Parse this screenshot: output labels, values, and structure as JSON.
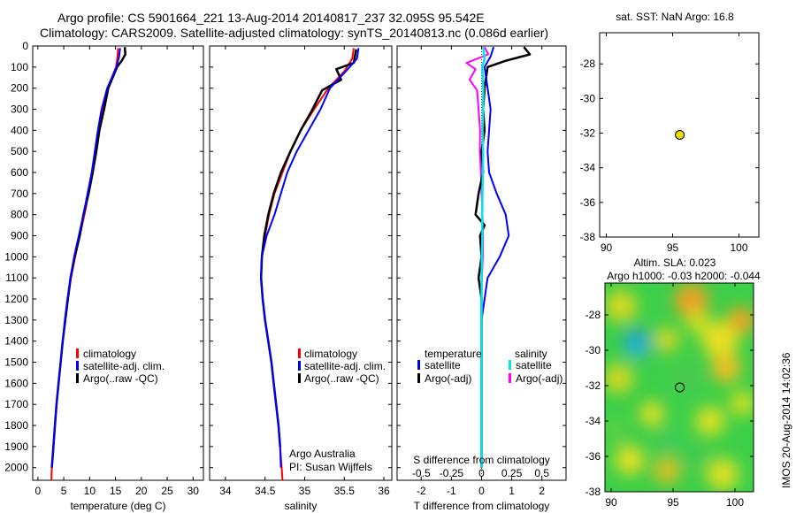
{
  "header": {
    "line1": "Argo profile: CS 5901664_221 13-Aug-2014 20140817_237 32.095S 95.542E",
    "line2": "Climatology: CARS2009. Satellite-adjusted climatology: synTS_20140813.nc (0.086d earlier)"
  },
  "colors": {
    "climatology": "#ff0000",
    "satellite": "#0000ff",
    "argo": "#000000",
    "sal_satellite": "#00e5ee",
    "sal_argo": "#ff00ff",
    "float_marker": "#e8e000"
  },
  "chart_data": [
    {
      "type": "line",
      "id": "temperature",
      "xlabel": "temperature (deg C)",
      "ylabel": "",
      "xlim": [
        -1,
        32
      ],
      "ylim": [
        2060,
        0
      ],
      "y_reversed": true,
      "xticks": [
        0,
        5,
        10,
        15,
        20,
        25,
        30
      ],
      "yticks": [
        0,
        100,
        200,
        300,
        400,
        500,
        600,
        700,
        800,
        900,
        1000,
        1100,
        1200,
        1300,
        1400,
        1500,
        1600,
        1700,
        1800,
        1900,
        2000
      ],
      "legend": [
        "climatology",
        "satellite-adj. clim.",
        "Argo(..raw -QC)"
      ],
      "series": [
        {
          "name": "climatology",
          "color": "#ff0000",
          "width": 2,
          "points": [
            [
              15.5,
              10
            ],
            [
              15.4,
              50
            ],
            [
              15.1,
              100
            ],
            [
              13.5,
              200
            ],
            [
              12.5,
              300
            ],
            [
              11.8,
              400
            ],
            [
              11.2,
              500
            ],
            [
              10.6,
              600
            ],
            [
              9.8,
              700
            ],
            [
              9.0,
              800
            ],
            [
              8.1,
              900
            ],
            [
              7.2,
              1000
            ],
            [
              6.4,
              1100
            ],
            [
              5.8,
              1200
            ],
            [
              5.3,
              1300
            ],
            [
              4.8,
              1400
            ],
            [
              4.4,
              1500
            ],
            [
              4.0,
              1600
            ],
            [
              3.6,
              1700
            ],
            [
              3.3,
              1800
            ],
            [
              3.0,
              1900
            ],
            [
              2.7,
              2000
            ],
            [
              2.6,
              2060
            ]
          ]
        },
        {
          "name": "Argo(..raw -QC)",
          "color": "#000000",
          "width": 2.5,
          "points": [
            [
              16.8,
              5
            ],
            [
              16.9,
              40
            ],
            [
              16.2,
              70
            ],
            [
              15.3,
              100
            ],
            [
              13.6,
              200
            ],
            [
              12.8,
              300
            ],
            [
              11.9,
              400
            ],
            [
              11.3,
              500
            ],
            [
              10.6,
              600
            ],
            [
              9.8,
              700
            ],
            [
              8.8,
              800
            ],
            [
              8.1,
              900
            ],
            [
              7.1,
              1000
            ],
            [
              6.3,
              1100
            ],
            [
              5.8,
              1200
            ],
            [
              5.3,
              1300
            ],
            [
              4.8,
              1400
            ],
            [
              4.4,
              1500
            ],
            [
              4.0,
              1600
            ],
            [
              3.6,
              1700
            ],
            [
              3.3,
              1800
            ],
            [
              3.0,
              1900
            ],
            [
              2.7,
              2000
            ]
          ]
        },
        {
          "name": "satellite-adj. clim.",
          "color": "#0000ff",
          "width": 2,
          "points": [
            [
              15.9,
              10
            ],
            [
              15.7,
              50
            ],
            [
              15.2,
              100
            ],
            [
              13.4,
              200
            ],
            [
              12.3,
              300
            ],
            [
              11.6,
              400
            ],
            [
              11.0,
              500
            ],
            [
              10.4,
              600
            ],
            [
              9.6,
              700
            ],
            [
              8.8,
              800
            ],
            [
              7.9,
              900
            ],
            [
              7.0,
              1000
            ],
            [
              6.3,
              1100
            ],
            [
              5.7,
              1200
            ],
            [
              5.2,
              1300
            ],
            [
              4.8,
              1400
            ],
            [
              4.4,
              1500
            ],
            [
              4.0,
              1600
            ],
            [
              3.6,
              1700
            ],
            [
              3.3,
              1800
            ],
            [
              3.0,
              1900
            ],
            [
              2.7,
              2000
            ]
          ]
        }
      ]
    },
    {
      "type": "line",
      "id": "salinity",
      "xlabel": "salinity",
      "ylabel": "",
      "xlim": [
        33.8,
        36.1
      ],
      "ylim": [
        2060,
        0
      ],
      "y_reversed": true,
      "xticks": [
        34,
        34.5,
        35,
        35.5,
        36
      ],
      "xticklabels": [
        "34",
        "34.5",
        "35",
        "35.5",
        "36"
      ],
      "legend": [
        "climatology",
        "satellite-adj. clim.",
        "Argo(..raw -QC)"
      ],
      "annotation": [
        "Argo Australia",
        "PI: Susan Wijffels"
      ],
      "series": [
        {
          "name": "climatology",
          "color": "#ff0000",
          "width": 2,
          "points": [
            [
              35.62,
              10
            ],
            [
              35.6,
              60
            ],
            [
              35.5,
              120
            ],
            [
              35.3,
              200
            ],
            [
              35.12,
              300
            ],
            [
              34.95,
              400
            ],
            [
              34.82,
              500
            ],
            [
              34.72,
              600
            ],
            [
              34.62,
              700
            ],
            [
              34.55,
              800
            ],
            [
              34.5,
              900
            ],
            [
              34.46,
              1000
            ],
            [
              34.45,
              1100
            ],
            [
              34.47,
              1200
            ],
            [
              34.5,
              1300
            ],
            [
              34.54,
              1400
            ],
            [
              34.58,
              1500
            ],
            [
              34.61,
              1600
            ],
            [
              34.64,
              1700
            ],
            [
              34.67,
              1800
            ],
            [
              34.69,
              1900
            ],
            [
              34.71,
              2000
            ],
            [
              34.72,
              2060
            ]
          ]
        },
        {
          "name": "Argo(..raw -QC)",
          "color": "#000000",
          "width": 2.5,
          "points": [
            [
              35.65,
              15
            ],
            [
              35.62,
              80
            ],
            [
              35.4,
              110
            ],
            [
              35.46,
              160
            ],
            [
              35.22,
              210
            ],
            [
              35.1,
              300
            ],
            [
              34.95,
              400
            ],
            [
              34.82,
              500
            ],
            [
              34.7,
              600
            ],
            [
              34.61,
              700
            ],
            [
              34.54,
              800
            ],
            [
              34.49,
              900
            ],
            [
              34.46,
              1000
            ],
            [
              34.45,
              1100
            ],
            [
              34.47,
              1200
            ],
            [
              34.5,
              1300
            ],
            [
              34.54,
              1400
            ],
            [
              34.58,
              1500
            ],
            [
              34.61,
              1600
            ],
            [
              34.64,
              1700
            ],
            [
              34.67,
              1800
            ],
            [
              34.69,
              1900
            ]
          ]
        },
        {
          "name": "satellite-adj. clim.",
          "color": "#0000ff",
          "width": 2,
          "points": [
            [
              35.68,
              10
            ],
            [
              35.66,
              60
            ],
            [
              35.52,
              120
            ],
            [
              35.32,
              200
            ],
            [
              35.2,
              300
            ],
            [
              35.05,
              400
            ],
            [
              34.9,
              500
            ],
            [
              34.78,
              600
            ],
            [
              34.7,
              700
            ],
            [
              34.62,
              800
            ],
            [
              34.52,
              900
            ],
            [
              34.46,
              1000
            ],
            [
              34.45,
              1100
            ],
            [
              34.47,
              1200
            ],
            [
              34.5,
              1300
            ],
            [
              34.54,
              1400
            ],
            [
              34.58,
              1500
            ],
            [
              34.61,
              1600
            ],
            [
              34.64,
              1700
            ],
            [
              34.67,
              1800
            ],
            [
              34.69,
              1900
            ],
            [
              34.7,
              2000
            ]
          ]
        }
      ]
    },
    {
      "type": "line",
      "id": "differences",
      "xlabel": "T difference from climatology",
      "top_label": "S difference from climatology",
      "xlim": [
        -2.8,
        2.8
      ],
      "ylim": [
        2060,
        0
      ],
      "y_reversed": true,
      "xticks": [
        -2,
        -1,
        0,
        1,
        2
      ],
      "top_ticks": [
        -0.5,
        -0.25,
        0,
        0.25,
        0.5
      ],
      "top_ticklabels": [
        "-0.5",
        "-0.25",
        "0",
        "0.25",
        "0.5"
      ],
      "legend_headers": [
        "temperature",
        "salinity"
      ],
      "legend": [
        "satellite",
        "Argo(-adj)",
        "satellite",
        "Argo(-adj)"
      ],
      "series": [
        {
          "name": "Argo(-adj)",
          "group": "salinity",
          "color": "#ff00ff",
          "width": 2,
          "points": [
            [
              0.1,
              5
            ],
            [
              0.22,
              40
            ],
            [
              -0.5,
              80
            ],
            [
              -0.2,
              110
            ],
            [
              -0.4,
              160
            ],
            [
              -0.15,
              210
            ],
            [
              -0.1,
              300
            ],
            [
              -0.05,
              400
            ],
            [
              -0.06,
              500
            ],
            [
              -0.02,
              600
            ],
            [
              0.0,
              700
            ],
            [
              0.03,
              800
            ],
            [
              0.05,
              900
            ],
            [
              0.04,
              1000
            ],
            [
              0.01,
              1100
            ],
            [
              0.0,
              1200
            ],
            [
              0.0,
              1300
            ],
            [
              0.0,
              1400
            ],
            [
              0.0,
              1500
            ],
            [
              0.0,
              1600
            ],
            [
              0.0,
              1700
            ],
            [
              0.0,
              1800
            ],
            [
              0.0,
              1900
            ]
          ]
        },
        {
          "name": "Argo(-adj)",
          "group": "temperature",
          "color": "#000000",
          "width": 2.5,
          "points": [
            [
              1.4,
              5
            ],
            [
              1.6,
              40
            ],
            [
              0.8,
              70
            ],
            [
              0.2,
              100
            ],
            [
              0.1,
              200
            ],
            [
              0.05,
              300
            ],
            [
              0.1,
              400
            ],
            [
              0.0,
              500
            ],
            [
              0.05,
              600
            ],
            [
              -0.1,
              700
            ],
            [
              -0.2,
              800
            ],
            [
              0.1,
              850
            ],
            [
              -0.05,
              900
            ],
            [
              0.0,
              1000
            ],
            [
              -0.1,
              1100
            ],
            [
              0.0,
              1200
            ],
            [
              0.0,
              1400
            ],
            [
              0.0,
              1600
            ],
            [
              0.0,
              1800
            ],
            [
              0.0,
              2000
            ]
          ]
        },
        {
          "name": "satellite",
          "group": "temperature",
          "color": "#0000ff",
          "width": 2,
          "points": [
            [
              0.4,
              5
            ],
            [
              0.3,
              50
            ],
            [
              0.1,
              100
            ],
            [
              0.2,
              200
            ],
            [
              0.3,
              300
            ],
            [
              0.25,
              400
            ],
            [
              0.2,
              500
            ],
            [
              0.25,
              600
            ],
            [
              0.5,
              700
            ],
            [
              0.8,
              800
            ],
            [
              0.9,
              900
            ],
            [
              0.6,
              1000
            ],
            [
              0.2,
              1100
            ],
            [
              0.1,
              1200
            ],
            [
              0.0,
              1300
            ],
            [
              0.0,
              1500
            ],
            [
              0.0,
              1700
            ],
            [
              0.0,
              2000
            ]
          ]
        },
        {
          "name": "satellite",
          "group": "salinity",
          "color": "#00e5ee",
          "width": 2.5,
          "points": [
            [
              0.05,
              5
            ],
            [
              0.1,
              60
            ],
            [
              0.02,
              100
            ],
            [
              0.06,
              200
            ],
            [
              0.05,
              300
            ],
            [
              0.03,
              400
            ],
            [
              0.05,
              500
            ],
            [
              0.04,
              600
            ],
            [
              0.03,
              700
            ],
            [
              0.02,
              800
            ],
            [
              0.03,
              900
            ],
            [
              0.01,
              1000
            ],
            [
              0.0,
              1100
            ],
            [
              0.0,
              1200
            ],
            [
              0.0,
              1300
            ],
            [
              0.0,
              1400
            ],
            [
              0.0,
              1500
            ],
            [
              0.0,
              1600
            ],
            [
              0.0,
              1700
            ],
            [
              0.0,
              1800
            ],
            [
              0.0,
              1900
            ],
            [
              0.0,
              2000
            ]
          ]
        }
      ]
    },
    {
      "type": "scatter",
      "id": "sst_map",
      "title": "sat. SST: NaN Argo: 16.8",
      "xlim": [
        89.5,
        101.5
      ],
      "ylim": [
        -38,
        -26.2
      ],
      "xticks": [
        90,
        95,
        100
      ],
      "yticks": [
        -38,
        -36,
        -34,
        -32,
        -30,
        -28
      ],
      "points": [
        [
          95.54,
          -32.1
        ]
      ]
    },
    {
      "type": "heatmap",
      "id": "sla_map",
      "title": "Altim. SLA: 0.023",
      "subtitle": "Argo h1000: -0.03 h2000: -0.044",
      "xlim": [
        89.5,
        101.5
      ],
      "ylim": [
        -38,
        -26.2
      ],
      "xticks": [
        90,
        95,
        100
      ],
      "yticks": [
        -38,
        -36,
        -34,
        -32,
        -30,
        -28
      ],
      "points": [
        [
          95.54,
          -32.1
        ]
      ],
      "side_label": "IMOS 20-Aug-2014 14:02:36"
    }
  ]
}
